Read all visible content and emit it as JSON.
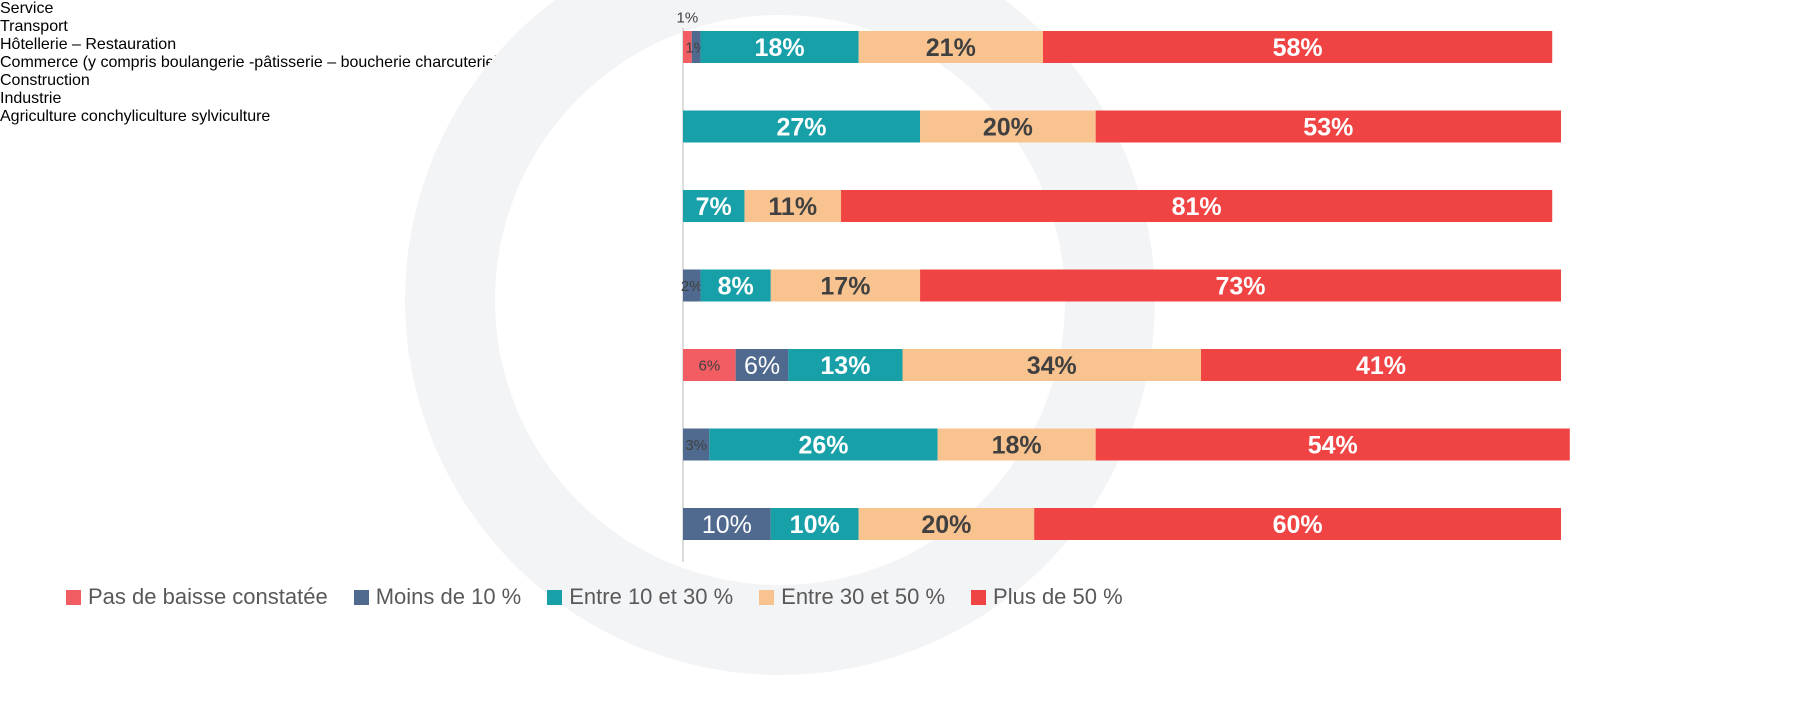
{
  "chart_data": {
    "type": "stacked_barh",
    "categories": [
      "Service",
      "Transport",
      "Hôtellerie – Restauration",
      "Commerce (y compris boulangerie -pâtisserie – boucherie charcuterie)",
      "Construction",
      "Industrie",
      "Agriculture conchyliculture sylviculture"
    ],
    "series": [
      {
        "name": "Pas de baisse constatée",
        "color": "#f25c63",
        "values": [
          1,
          null,
          null,
          null,
          6,
          null,
          null
        ],
        "value_labels": [
          "1%",
          null,
          null,
          null,
          "6%",
          null,
          null
        ]
      },
      {
        "name": "Moins de 10 %",
        "color": "#4f6a8e",
        "values": [
          1,
          null,
          null,
          2,
          6,
          3,
          10
        ],
        "value_labels": [
          "1%",
          null,
          null,
          "2%",
          "6%",
          "3%",
          "10%"
        ]
      },
      {
        "name": "Entre 10 et 30 %",
        "color": "#17a0a8",
        "values": [
          18,
          27,
          7,
          8,
          13,
          26,
          10
        ],
        "value_labels": [
          "18%",
          "27%",
          "7%",
          "8%",
          "13%",
          "26%",
          "10%"
        ]
      },
      {
        "name": "Entre 30 et 50 %",
        "color": "#f9c38f",
        "values": [
          21,
          20,
          11,
          17,
          34,
          18,
          20
        ],
        "value_labels": [
          "21%",
          "20%",
          "11%",
          "17%",
          "34%",
          "18%",
          "20%"
        ]
      },
      {
        "name": "Plus de 50 %",
        "color": "#f04444",
        "values": [
          58,
          53,
          81,
          73,
          41,
          54,
          60
        ],
        "value_labels": [
          "58%",
          "53%",
          "81%",
          "73%",
          "41%",
          "54%",
          "60%"
        ]
      }
    ],
    "xlim": [
      0,
      100
    ],
    "legend": "bottom"
  }
}
